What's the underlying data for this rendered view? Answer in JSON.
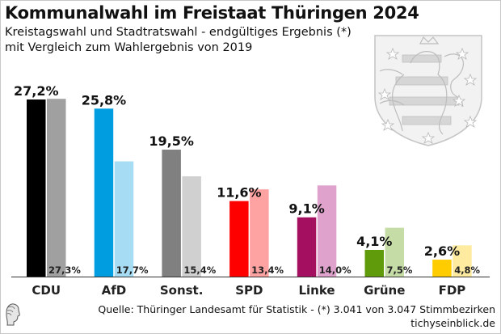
{
  "header": {
    "title": "Kommunalwahl im Freistaat Thüringen 2024",
    "subtitle_line1": "Kreistagswahl und Stadtratswahl - endgültiges Ergebnis (*)",
    "subtitle_line2": "mit Vergleich zum Wahlergebnis von 2019"
  },
  "footer": {
    "source": "Quelle: Thüringer Landesamt für Statistik - (*) 3.041 von 3.047 Stimmbezirken",
    "site": "tichyseinblick.de"
  },
  "icons": {
    "crest": "thuringia-coat-of-arms",
    "logo": "tichys-einblick-head-logo"
  },
  "chart_data": {
    "type": "bar",
    "title": "Kommunalwahl im Freistaat Thüringen 2024",
    "subtitle": "Kreistagswahl und Stadtratswahl - endgültiges Ergebnis (*) mit Vergleich zum Wahlergebnis von 2019",
    "xlabel": "",
    "ylabel": "",
    "ylim": [
      0,
      28
    ],
    "grid": false,
    "legend": "none",
    "categories": [
      "CDU",
      "AfD",
      "Sonst.",
      "SPD",
      "Linke",
      "Grüne",
      "FDP"
    ],
    "series": [
      {
        "name": "2024",
        "values": [
          27.2,
          25.8,
          19.5,
          11.6,
          9.1,
          4.1,
          2.6
        ],
        "labels": [
          "27,2%",
          "25,8%",
          "19,5%",
          "11,6%",
          "9,1%",
          "4,1%",
          "2,6%"
        ],
        "colors": [
          "#000000",
          "#009ee0",
          "#808080",
          "#ff0000",
          "#a50f5f",
          "#5f9b0a",
          "#ffcc00"
        ]
      },
      {
        "name": "2019",
        "values": [
          27.3,
          17.7,
          15.4,
          13.4,
          14.0,
          7.5,
          4.8
        ],
        "labels": [
          "27,3%",
          "17,7%",
          "15,4%",
          "13,4%",
          "14,0%",
          "7,5%",
          "4,8%"
        ],
        "colors": [
          "#a0a0a0",
          "#a6dcf4",
          "#d0d0d0",
          "#ffa2a2",
          "#dea2cc",
          "#c6dca6",
          "#ffeba0"
        ]
      }
    ]
  }
}
